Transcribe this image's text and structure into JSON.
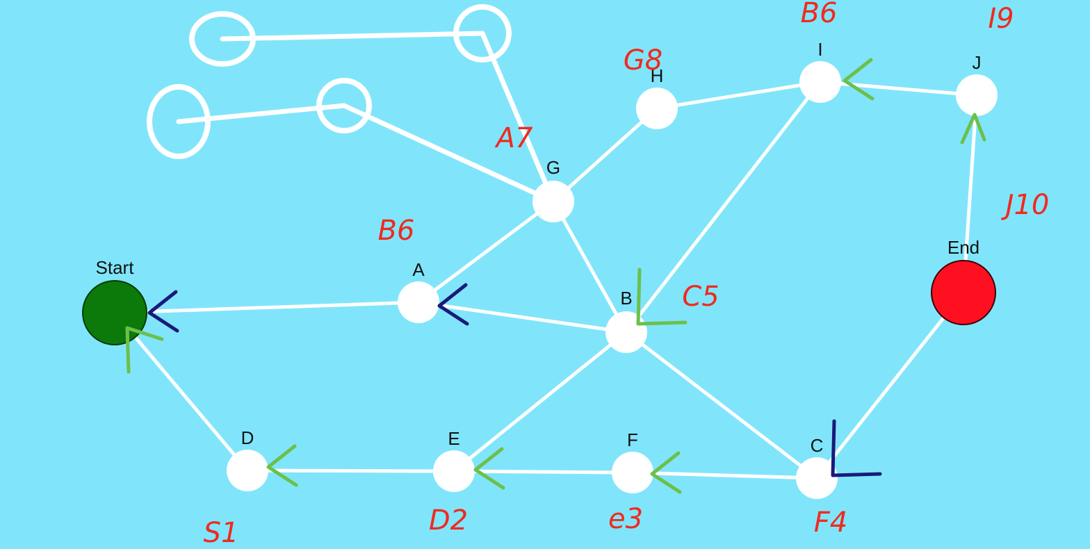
{
  "colors": {
    "background": "#80e5fb",
    "edge": "#ffffff",
    "node": "#ffffff",
    "start_node": "#0b7a0b",
    "end_node": "#ff1020",
    "annotation_red": "#f02a1e",
    "arrow_green": "#6cc04a",
    "arrow_navy": "#1a1a7a"
  },
  "nodes": [
    {
      "id": "start",
      "label": "Start",
      "kind": "start"
    },
    {
      "id": "A",
      "label": "A",
      "kind": "normal"
    },
    {
      "id": "B",
      "label": "B",
      "kind": "normal"
    },
    {
      "id": "C",
      "label": "C",
      "kind": "normal"
    },
    {
      "id": "D",
      "label": "D",
      "kind": "normal"
    },
    {
      "id": "E",
      "label": "E",
      "kind": "normal"
    },
    {
      "id": "F",
      "label": "F",
      "kind": "normal"
    },
    {
      "id": "G",
      "label": "G",
      "kind": "normal"
    },
    {
      "id": "H",
      "label": "H",
      "kind": "normal"
    },
    {
      "id": "I",
      "label": "I",
      "kind": "normal"
    },
    {
      "id": "J",
      "label": "J",
      "kind": "normal"
    },
    {
      "id": "end",
      "label": "End",
      "kind": "end"
    },
    {
      "id": "u1",
      "label": "",
      "kind": "hollow"
    },
    {
      "id": "u2",
      "label": "",
      "kind": "hollow"
    },
    {
      "id": "u3",
      "label": "",
      "kind": "hollow"
    },
    {
      "id": "u4",
      "label": "",
      "kind": "hollow"
    }
  ],
  "edges": [
    [
      "start",
      "A"
    ],
    [
      "start",
      "D"
    ],
    [
      "A",
      "B"
    ],
    [
      "A",
      "G"
    ],
    [
      "G",
      "B"
    ],
    [
      "G",
      "H"
    ],
    [
      "H",
      "I"
    ],
    [
      "I",
      "J"
    ],
    [
      "I",
      "B"
    ],
    [
      "J",
      "end"
    ],
    [
      "B",
      "E"
    ],
    [
      "B",
      "C"
    ],
    [
      "D",
      "E"
    ],
    [
      "E",
      "F"
    ],
    [
      "F",
      "C"
    ],
    [
      "C",
      "end"
    ],
    [
      "u1",
      "u2"
    ],
    [
      "u2",
      "G"
    ],
    [
      "u3",
      "u4"
    ],
    [
      "u4",
      "G"
    ]
  ],
  "annotations": [
    {
      "id": "A",
      "text": "B6"
    },
    {
      "id": "B",
      "text": "C5"
    },
    {
      "id": "C",
      "text": "F4"
    },
    {
      "id": "D",
      "text": "S1"
    },
    {
      "id": "E",
      "text": "D2"
    },
    {
      "id": "F",
      "text": "e3"
    },
    {
      "id": "G",
      "text": "A7"
    },
    {
      "id": "H",
      "text": "G8"
    },
    {
      "id": "I",
      "text": "B6"
    },
    {
      "id": "J",
      "text": "I9"
    },
    {
      "id": "end",
      "text": "J10"
    }
  ],
  "path_arrows": [
    {
      "at": "A",
      "color": "navy"
    },
    {
      "at": "start",
      "color": "navy"
    },
    {
      "at": "start",
      "color": "green"
    },
    {
      "at": "D",
      "color": "green"
    },
    {
      "at": "E",
      "color": "green"
    },
    {
      "at": "F",
      "color": "green"
    },
    {
      "at": "C",
      "color": "navy"
    },
    {
      "at": "B",
      "color": "green"
    },
    {
      "at": "I",
      "color": "green"
    },
    {
      "at": "J",
      "color": "green"
    }
  ]
}
